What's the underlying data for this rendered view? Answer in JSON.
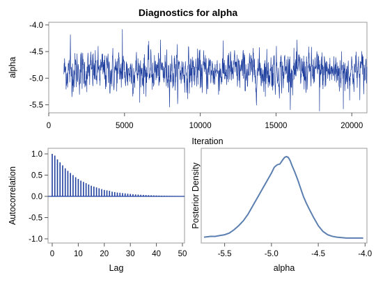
{
  "title": "Diagnostics for alpha",
  "colors": {
    "trace": "#1f3f9f",
    "acf": "#1f3f9f",
    "density": "#5b7fb0",
    "frame": "#9a9a9a"
  },
  "chart_data": [
    {
      "type": "line",
      "name": "trace",
      "xlabel": "Iteration",
      "ylabel": "alpha",
      "xlim": [
        0,
        21000
      ],
      "ylim": [
        -5.65,
        -3.95
      ],
      "xticks": [
        "0",
        "5000",
        "10000",
        "15000",
        "20000"
      ],
      "yticks": [
        "-4.0",
        "-4.5",
        "-5.0",
        "-5.5"
      ],
      "iteration_start": 1000,
      "iteration_end": 21000,
      "center": -4.87,
      "spread_typical": 0.18,
      "observed_max": -4.08,
      "observed_min": -5.62
    },
    {
      "type": "bar",
      "name": "autocorrelation",
      "xlabel": "Lag",
      "ylabel": "Autocorrelation",
      "xlim": [
        0,
        51
      ],
      "ylim": [
        -1.0,
        1.0
      ],
      "xticks": [
        "0",
        "10",
        "20",
        "30",
        "40",
        "50"
      ],
      "yticks": [
        "1.0",
        "0.5",
        "0.0",
        "-0.5",
        "-1.0"
      ],
      "lags": [
        1,
        2,
        3,
        4,
        5,
        6,
        7,
        8,
        9,
        10,
        11,
        12,
        13,
        14,
        15,
        16,
        17,
        18,
        19,
        20,
        21,
        22,
        23,
        24,
        25,
        26,
        27,
        28,
        29,
        30,
        31,
        32,
        33,
        34,
        35,
        36,
        37,
        38,
        39,
        40,
        41,
        42,
        43,
        44,
        45,
        46,
        47,
        48,
        49,
        50
      ],
      "values": [
        0.96,
        0.87,
        0.8,
        0.73,
        0.66,
        0.6,
        0.55,
        0.5,
        0.45,
        0.41,
        0.37,
        0.34,
        0.31,
        0.28,
        0.25,
        0.23,
        0.21,
        0.19,
        0.17,
        0.15,
        0.14,
        0.13,
        0.11,
        0.1,
        0.09,
        0.085,
        0.077,
        0.07,
        0.063,
        0.057,
        0.051,
        0.046,
        0.042,
        0.038,
        0.034,
        0.031,
        0.028,
        0.025,
        0.022,
        0.02,
        0.018,
        0.016,
        0.015,
        0.013,
        0.012,
        0.011,
        0.01,
        0.009,
        0.008,
        0.007
      ]
    },
    {
      "type": "line",
      "name": "posterior-density",
      "xlabel": "alpha",
      "ylabel": "Posterior Density",
      "xlim": [
        -5.75,
        -3.98
      ],
      "ylim": [
        0,
        1.05
      ],
      "xticks": [
        "-5.5",
        "-5.0",
        "-4.5",
        "-4.0"
      ],
      "x": [
        -5.72,
        -5.65,
        -5.6,
        -5.55,
        -5.5,
        -5.45,
        -5.4,
        -5.35,
        -5.3,
        -5.25,
        -5.2,
        -5.15,
        -5.1,
        -5.05,
        -5.0,
        -4.97,
        -4.94,
        -4.91,
        -4.88,
        -4.86,
        -4.84,
        -4.82,
        -4.8,
        -4.78,
        -4.75,
        -4.72,
        -4.69,
        -4.66,
        -4.63,
        -4.6,
        -4.55,
        -4.5,
        -4.45,
        -4.4,
        -4.35,
        -4.3,
        -4.2,
        -4.1,
        -4.02
      ],
      "y": [
        0.02,
        0.03,
        0.03,
        0.04,
        0.05,
        0.07,
        0.11,
        0.16,
        0.22,
        0.3,
        0.4,
        0.5,
        0.6,
        0.7,
        0.8,
        0.87,
        0.9,
        0.91,
        0.96,
        0.99,
        1.0,
        0.99,
        0.95,
        0.89,
        0.81,
        0.72,
        0.62,
        0.52,
        0.44,
        0.37,
        0.26,
        0.16,
        0.09,
        0.05,
        0.03,
        0.02,
        0.01,
        0.01,
        0.01
      ]
    }
  ]
}
